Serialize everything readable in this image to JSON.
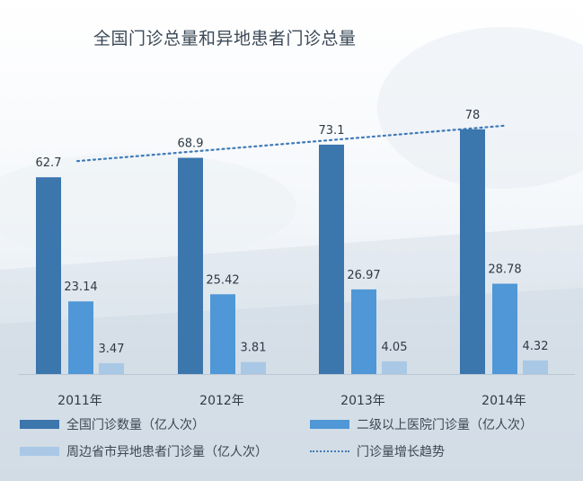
{
  "chart_data": {
    "type": "bar",
    "title": "全国门诊总量和异地患者门诊总量",
    "categories": [
      "2011年",
      "2012年",
      "2013年",
      "2014年"
    ],
    "series": [
      {
        "name": "全国门诊数量（亿人次）",
        "values": [
          62.7,
          68.9,
          73.1,
          78
        ],
        "labels": [
          "62.7",
          "68.9",
          "73.1",
          "78"
        ],
        "color": "#3b76ad"
      },
      {
        "name": "二级以上医院门诊量（亿人次）",
        "values": [
          23.14,
          25.42,
          26.97,
          28.78
        ],
        "labels": [
          "23.14",
          "25.42",
          "26.97",
          "28.78"
        ],
        "color": "#4f97d6"
      },
      {
        "name": "周边省市异地患者门诊量（亿人次）",
        "values": [
          3.47,
          3.81,
          4.05,
          4.32
        ],
        "labels": [
          "3.47",
          "3.81",
          "4.05",
          "4.32"
        ],
        "color": "#a9c8e6"
      }
    ],
    "trend": {
      "name": "门诊量增长趋势",
      "color": "#3f7ab7",
      "values": [
        62.7,
        78
      ]
    },
    "ylim": [
      0,
      80
    ],
    "xlabel": "",
    "ylabel": "",
    "grid": false,
    "legend_position": "bottom"
  }
}
